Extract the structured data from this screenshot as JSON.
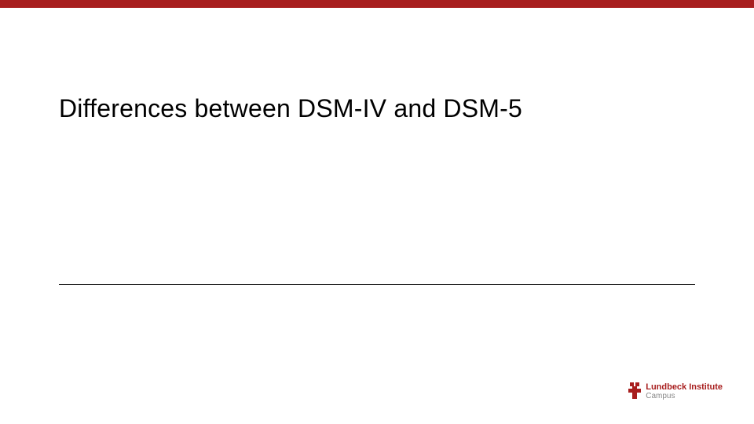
{
  "slide": {
    "title": "Differences between DSM-IV and DSM-5",
    "top_bar_color": "#a81e1e",
    "background_color": "#ffffff",
    "title_fontsize": 32,
    "title_color": "#000000",
    "divider_color": "#000000"
  },
  "logo": {
    "brand_main": "Lundbeck Institute",
    "brand_sub": "Campus",
    "brand_color": "#a81e1e",
    "sub_color": "#888888",
    "main_fontsize": 11,
    "sub_fontsize": 10
  }
}
